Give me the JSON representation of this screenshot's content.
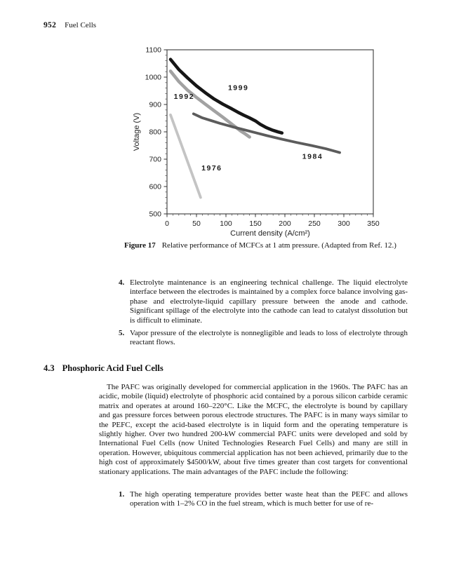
{
  "page_header": {
    "page_number": "952",
    "running_head": "Fuel Cells"
  },
  "figure": {
    "caption_label": "Figure 17",
    "caption_text": "Relative performance of MCFCs at 1 atm pressure. (Adapted from Ref. 12.)"
  },
  "chart_data": {
    "type": "line",
    "title": "",
    "xlabel": "Current density (A/cm²)",
    "ylabel": "Voltage (V)",
    "xlim": [
      0,
      350
    ],
    "ylim": [
      500,
      1100
    ],
    "x_major_ticks": [
      0,
      50,
      100,
      150,
      200,
      250,
      300,
      350
    ],
    "y_major_ticks": [
      500,
      600,
      700,
      800,
      900,
      1000,
      1100
    ],
    "x_minor_step": 10,
    "y_minor_step": 20,
    "grid": false,
    "legend_position": "inline-labels",
    "series": [
      {
        "name": "1976",
        "color": "#c4c4c4",
        "width": 3.8,
        "label_pos": [
          76,
          659
        ],
        "points": [
          [
            6,
            862
          ],
          [
            57,
            560
          ]
        ]
      },
      {
        "name": "1992",
        "color": "#a2a2a2",
        "width": 4.6,
        "label_pos": [
          29,
          921
        ],
        "points": [
          [
            6,
            1022
          ],
          [
            20,
            984
          ],
          [
            35,
            952
          ],
          [
            50,
            926
          ],
          [
            65,
            901
          ],
          [
            80,
            877
          ],
          [
            95,
            853
          ],
          [
            110,
            828
          ],
          [
            125,
            803
          ],
          [
            133,
            792
          ],
          [
            140,
            781
          ]
        ]
      },
      {
        "name": "1984",
        "color": "#5c5c5c",
        "width": 3.8,
        "label_pos": [
          247,
          701
        ],
        "points": [
          [
            45,
            866
          ],
          [
            60,
            851
          ],
          [
            75,
            841
          ],
          [
            90,
            831
          ],
          [
            110,
            819
          ],
          [
            130,
            808
          ],
          [
            150,
            797
          ],
          [
            170,
            786
          ],
          [
            195,
            773
          ],
          [
            220,
            761
          ],
          [
            245,
            750
          ],
          [
            270,
            738
          ],
          [
            293,
            724
          ]
        ]
      },
      {
        "name": "1999",
        "color": "#161616",
        "width": 4.6,
        "label_pos": [
          121,
          952
        ],
        "points": [
          [
            6,
            1065
          ],
          [
            20,
            1028
          ],
          [
            35,
            997
          ],
          [
            50,
            968
          ],
          [
            65,
            943
          ],
          [
            80,
            920
          ],
          [
            95,
            901
          ],
          [
            110,
            884
          ],
          [
            120,
            872
          ],
          [
            130,
            861
          ],
          [
            140,
            851
          ],
          [
            150,
            840
          ],
          [
            158,
            828
          ],
          [
            168,
            816
          ],
          [
            178,
            807
          ],
          [
            188,
            800
          ],
          [
            195,
            796
          ]
        ]
      }
    ]
  },
  "list_top": {
    "items": [
      {
        "number": "4.",
        "text": "Electrolyte maintenance is an engineering technical challenge. The liquid electrolyte interface between the electrodes is maintained by a complex force balance involving gas-phase and electrolyte-liquid capillary pressure between the anode and cathode. Significant spillage of the electrolyte into the cathode can lead to catalyst dissolution but is difficult to eliminate."
      },
      {
        "number": "5.",
        "text": "Vapor pressure of the electrolyte is nonnegligible and leads to loss of electrolyte through reactant flows."
      }
    ]
  },
  "section": {
    "number": "4.3",
    "title": "Phosphoric Acid Fuel Cells",
    "paragraph": "The PAFC was originally developed for commercial application in the 1960s. The PAFC has an acidic, mobile (liquid) electrolyte of phosphoric acid contained by a porous silicon carbide ceramic matrix and operates at around 160–220°C. Like the MCFC, the electrolyte is bound by capillary and gas pressure forces between porous electrode structures. The PAFC is in many ways similar to the PEFC, except the acid-based electrolyte is in liquid form and the operating temperature is slightly higher. Over two hundred 200-kW commercial PAFC units were developed and sold by International Fuel Cells (now United Technologies Research Fuel Cells) and many are still in operation. However, ubiquitous commercial application has not been achieved, primarily due to the high cost of approximately $4500/kW, about five times greater than cost targets for conventional stationary applications. The main advantages of the PAFC include the following:"
  },
  "list_bottom": {
    "items": [
      {
        "number": "1.",
        "text": "The high operating temperature provides better waste heat than the PEFC and allows operation with 1–2% CO in the fuel stream, which is much better for use of re-"
      }
    ]
  }
}
